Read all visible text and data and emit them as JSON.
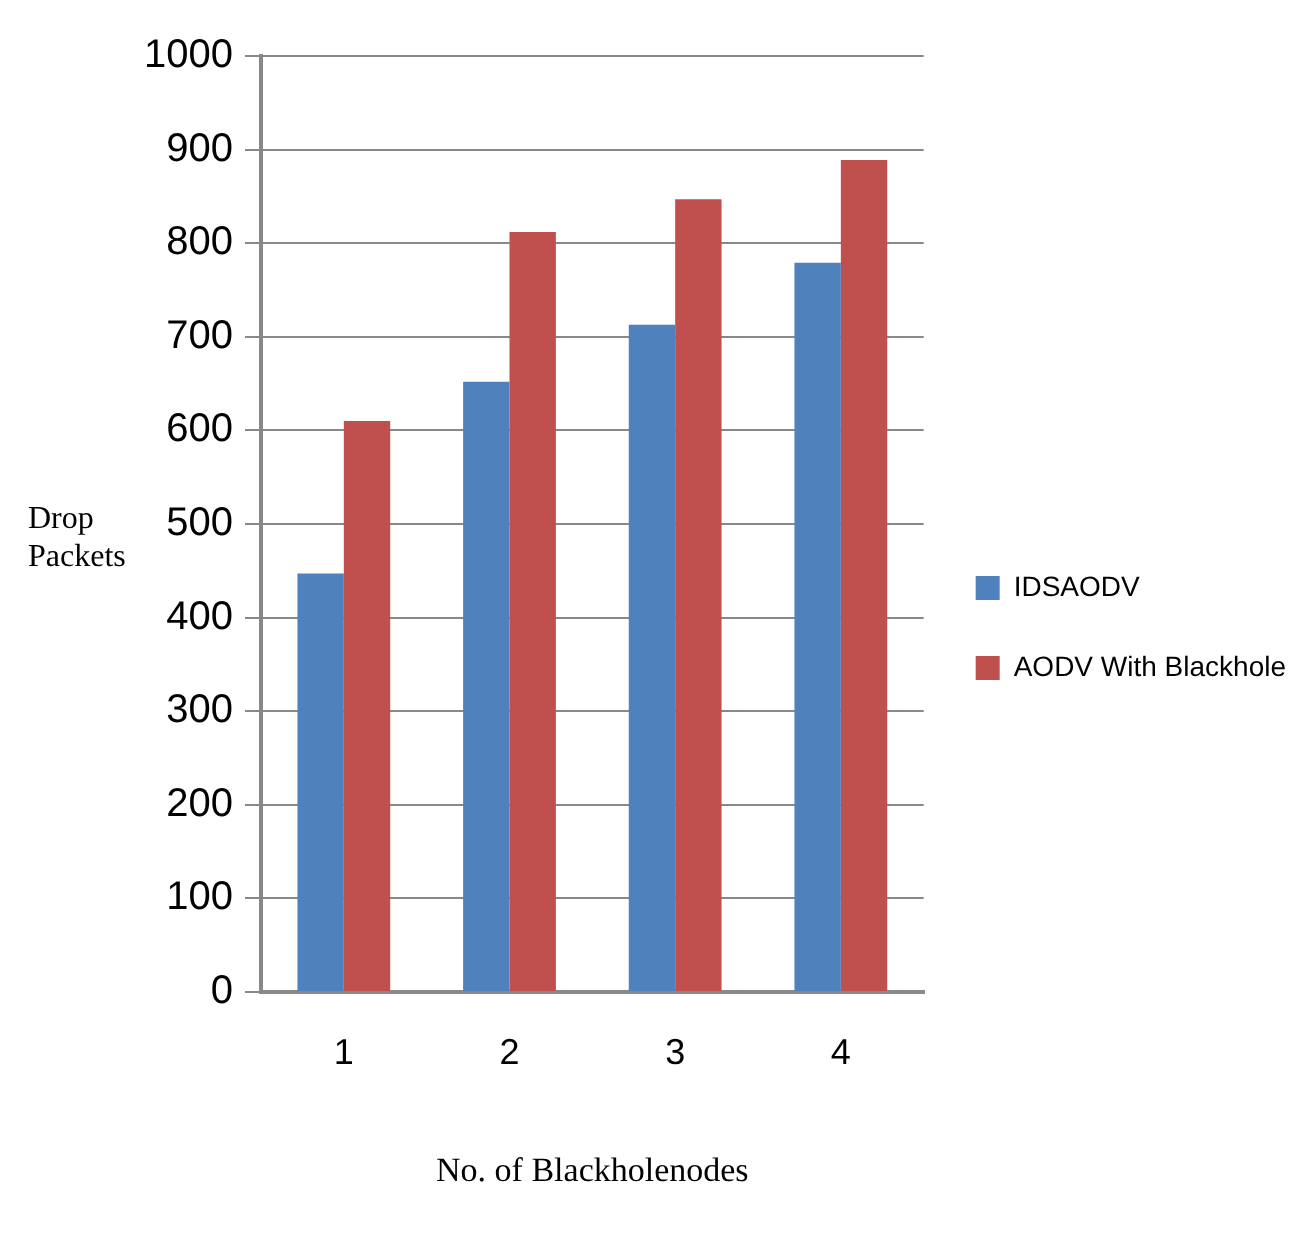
{
  "chart_data": {
    "type": "bar",
    "xlabel": "No. of Blackholenodes",
    "ylabel": "Drop Packets",
    "categories": [
      "1",
      "2",
      "3",
      "4"
    ],
    "series": [
      {
        "name": "IDSAODV",
        "color": "#4f81bd",
        "values": [
          447,
          652,
          713,
          779
        ]
      },
      {
        "name": "AODV With Blackhole",
        "color": "#c0504d",
        "values": [
          610,
          812,
          847,
          889
        ]
      }
    ],
    "ylim": [
      0,
      1000
    ],
    "yticks": [
      0,
      100,
      200,
      300,
      400,
      500,
      600,
      700,
      800,
      900,
      1000
    ],
    "grid": "y",
    "legend": "right"
  }
}
